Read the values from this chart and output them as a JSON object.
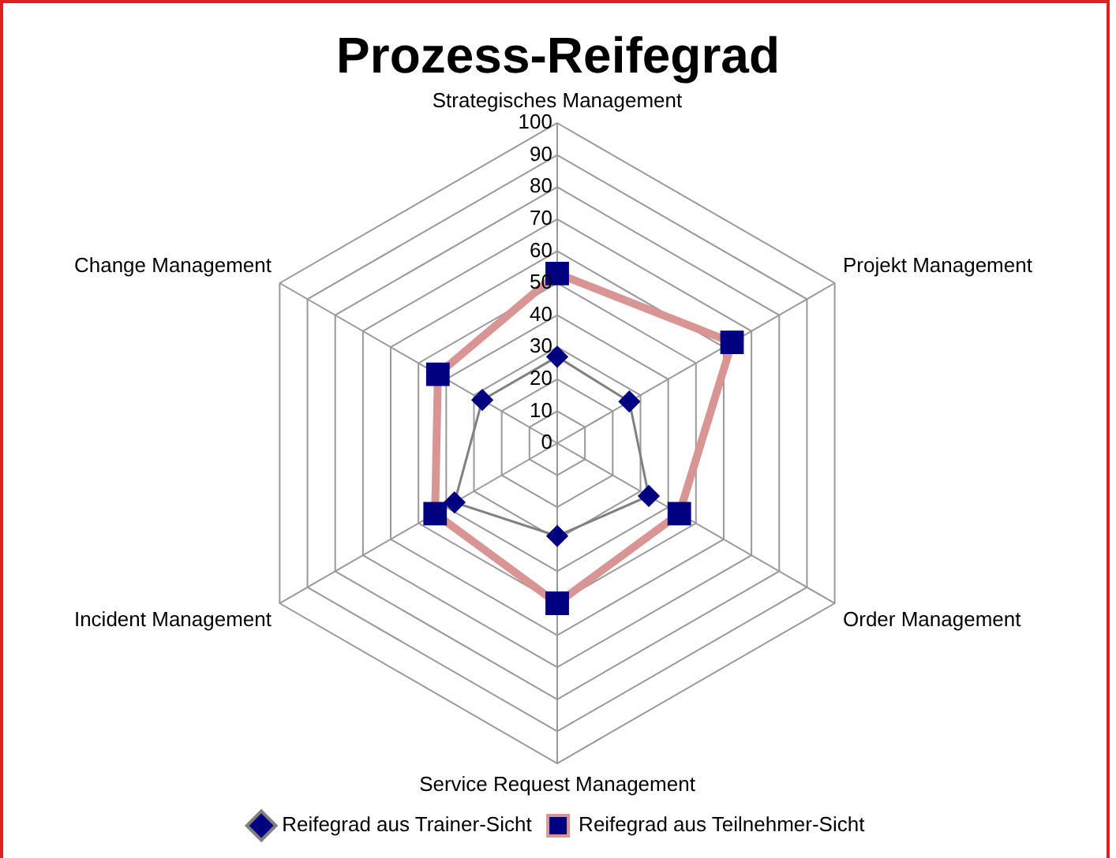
{
  "chart_data": {
    "type": "radar",
    "title": "Prozess-Reifegrad",
    "categories": [
      "Strategisches Management",
      "Projekt Management",
      "Order Management",
      "Service Request Management",
      "Incident Management",
      "Change Management"
    ],
    "series": [
      {
        "name": "Reifegrad aus Trainer-Sicht",
        "color": "#808080",
        "marker": "diamond",
        "values": [
          27,
          26,
          33,
          29,
          37,
          27
        ]
      },
      {
        "name": "Reifegrad aus Teilnehmer-Sicht",
        "color": "#d99594",
        "marker": "square",
        "values": [
          53,
          63,
          44,
          50,
          44,
          43
        ]
      }
    ],
    "ylim": [
      0,
      100
    ],
    "yticks": [
      0,
      10,
      20,
      30,
      40,
      50,
      60,
      70,
      80,
      90,
      100
    ],
    "grid": true,
    "legend": "bottom"
  }
}
